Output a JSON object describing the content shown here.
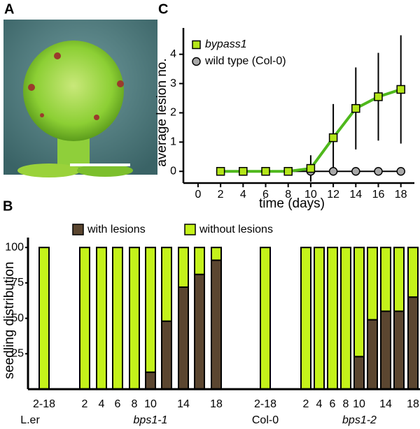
{
  "panel_labels": [
    "A",
    "B",
    "C"
  ],
  "chart_data": [
    {
      "type": "line",
      "x_label": "time (days)",
      "y_label": "average lesion no.",
      "x": [
        2,
        4,
        6,
        8,
        10,
        12,
        14,
        16,
        18
      ],
      "series": [
        {
          "name": "bypass1",
          "color": "#b4e619",
          "line_color": "#4fb81c",
          "marker": "square",
          "values": [
            0,
            0,
            0,
            0,
            0.1,
            1.15,
            2.15,
            2.55,
            2.8
          ],
          "errors": [
            0,
            0,
            0,
            0,
            0.45,
            1.15,
            1.4,
            1.5,
            1.85
          ]
        },
        {
          "name": "wild type (Col-0)",
          "color": "#a8a8a8",
          "line_color": "#000000",
          "marker": "circle",
          "values": [
            0,
            0,
            0,
            0,
            0,
            0,
            0,
            0,
            0
          ]
        }
      ],
      "xlim": [
        -1.3,
        19.2
      ],
      "ylim": [
        -0.4,
        4.9
      ],
      "xticks": [
        0,
        2,
        4,
        6,
        8,
        10,
        12,
        14,
        16,
        18
      ],
      "yticks": [
        0,
        1,
        2,
        3,
        4
      ]
    },
    {
      "type": "stacked_bar",
      "y_label": "seedling distribution",
      "categories": [
        "2-18",
        "2",
        "4",
        "6",
        "8",
        "10",
        null,
        "14",
        null,
        "18",
        "2-18",
        "2",
        "4",
        "6",
        "8",
        "10",
        null,
        "14",
        null,
        "18"
      ],
      "group_labels": [
        "L.er",
        "bps1-1",
        "Col-0",
        "bps1-2"
      ],
      "series": [
        {
          "name": "with lesions",
          "color": "#5b4630",
          "values": [
            0,
            0,
            0,
            0,
            0,
            12,
            48,
            72,
            81,
            91,
            0,
            0,
            0,
            0,
            0,
            23,
            49,
            55,
            55,
            65
          ]
        },
        {
          "name": "without lesions",
          "color": "#c4f21a",
          "values": [
            100,
            100,
            100,
            100,
            100,
            88,
            52,
            28,
            19,
            9,
            100,
            100,
            100,
            100,
            100,
            77,
            51,
            45,
            45,
            35
          ]
        }
      ],
      "ylim": [
        0,
        107
      ],
      "yticks": [
        25,
        50,
        75,
        100
      ]
    }
  ]
}
